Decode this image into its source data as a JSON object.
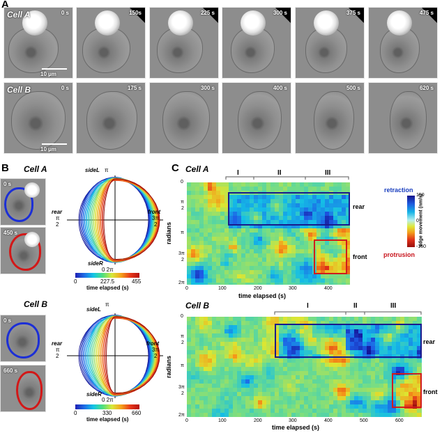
{
  "panel_letters": {
    "a": "A",
    "b": "B",
    "c": "C"
  },
  "panel_a": {
    "cell_a": {
      "name": "Cell A",
      "times": [
        "0 s",
        "150s",
        "225 s",
        "300 s",
        "375 s",
        "475 s"
      ],
      "scale": "10 µm"
    },
    "cell_b": {
      "name": "Cell B",
      "times": [
        "0 s",
        "175 s",
        "300 s",
        "400 s",
        "500 s",
        "620 s"
      ],
      "scale": "10 µm"
    }
  },
  "panel_b": {
    "cell_a": {
      "title": "Cell A",
      "thumb_times": [
        "0 s",
        "450 s"
      ],
      "labels": {
        "sideL": "sideL",
        "sideR": "sideR",
        "rear": "rear",
        "front": "front",
        "pi": "π",
        "pi2_top": "π",
        "pi2_bottom": "2",
        "three_pi_top": "3π",
        "three_pi_bottom": "2",
        "zero_2pi": "0  2π"
      },
      "colorbar": {
        "ticks": [
          "0",
          "227.5",
          "455"
        ],
        "label": "time elapsed (s)"
      }
    },
    "cell_b": {
      "title": "Cell B",
      "thumb_times": [
        "0 s",
        "660 s"
      ],
      "labels": {
        "sideL": "sideL",
        "sideR": "sideR",
        "rear": "rear",
        "front": "front",
        "pi": "π",
        "pi2_top": "π",
        "pi2_bottom": "2",
        "three_pi_top": "3π",
        "three_pi_bottom": "2",
        "zero_2pi": "0  2π"
      },
      "colorbar": {
        "ticks": [
          "0",
          "330",
          "660"
        ],
        "label": "time elapsed (s)"
      }
    }
  },
  "panel_c": {
    "cell_a": {
      "title": "Cell A",
      "phases": [
        "I",
        "II",
        "III"
      ],
      "x_ticks": [
        "0",
        "100",
        "200",
        "300",
        "400"
      ],
      "y_ticks": [
        "0",
        "π",
        "2",
        "π",
        "3π",
        "2",
        "2π"
      ],
      "xlabel": "time elapsed (s)",
      "ylabel": "radians",
      "region_labels": {
        "rear": "rear",
        "front": "front"
      }
    },
    "cell_b": {
      "title": "Cell B",
      "phases": [
        "I",
        "II",
        "III"
      ],
      "x_ticks": [
        "0",
        "100",
        "200",
        "300",
        "400",
        "500",
        "600"
      ],
      "y_ticks": [
        "0",
        "π",
        "2",
        "π",
        "3π",
        "2",
        "2π"
      ],
      "xlabel": "time elapsed (s)",
      "ylabel": "radians",
      "region_labels": {
        "rear": "rear",
        "front": "front"
      }
    },
    "colorbar": {
      "top_label": "retraction",
      "bottom_label": "protrusion",
      "ticks": [
        "150",
        "0",
        "-150"
      ],
      "axis_label": "edge movement (nm/s)"
    }
  },
  "colors": {
    "rear_box": "#1a1a8c",
    "front_box": "#d01c1c",
    "retraction": "#1a3fbf",
    "protrusion": "#c8141c"
  }
}
